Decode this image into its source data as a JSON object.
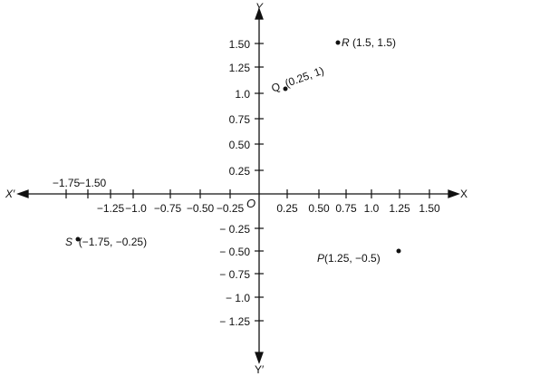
{
  "axes": {
    "x_label": "X",
    "x_neg_label": "X′",
    "y_label": "Y",
    "y_neg_label": "Y′",
    "origin": "O"
  },
  "x_ticks_above": [
    "−1.75",
    "−1.50"
  ],
  "x_ticks_below": [
    "−1.25",
    "−1.0",
    "−0.75",
    "−0.50",
    "−0.25",
    "0.25",
    "0.50",
    "0.75",
    "1.0",
    "1.25",
    "1.50"
  ],
  "y_ticks": [
    "1.50",
    "1.25",
    "1.0",
    "0.75",
    "0.50",
    "0.25",
    "− 0.25",
    "− 0.50",
    "− 0.75",
    "− 1.0",
    "− 1.25"
  ],
  "points": [
    {
      "name": "R",
      "coords": "(1.5, 1.5)",
      "x": 1.5,
      "y": 1.5
    },
    {
      "name": "Q",
      "coords": "(0.25, 1)",
      "x": 0.25,
      "y": 1
    },
    {
      "name": "S",
      "coords": "(−1.75, −0.25)",
      "x": -1.75,
      "y": -0.25
    },
    {
      "name": "P",
      "coords": "(1.25, −0.5)",
      "x": 1.25,
      "y": -0.5
    }
  ]
}
